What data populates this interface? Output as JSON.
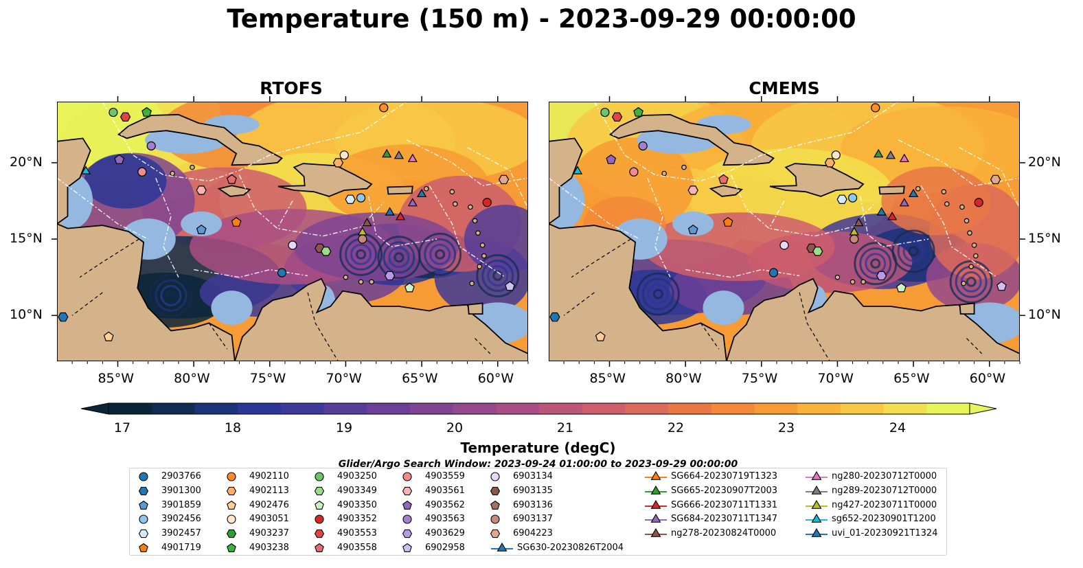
{
  "title": "Temperature (150 m) - 2023-09-29 00:00:00",
  "panels": [
    {
      "title": "RTOFS"
    },
    {
      "title": "CMEMS"
    }
  ],
  "axes": {
    "lon_ticks": [
      "85°W",
      "80°W",
      "75°W",
      "70°W",
      "65°W",
      "60°W"
    ],
    "lat_ticks": [
      "20°N",
      "15°N",
      "10°N"
    ],
    "lon_range": [
      -89,
      -58
    ],
    "lat_range": [
      7,
      24
    ]
  },
  "colorbar": {
    "label": "Temperature (degC)",
    "ticks": [
      "17",
      "18",
      "19",
      "20",
      "21",
      "22",
      "23",
      "24"
    ],
    "colors": [
      "#0b2538",
      "#112b52",
      "#1d3379",
      "#2c3696",
      "#3f3a99",
      "#553d98",
      "#6b4096",
      "#804592",
      "#95498b",
      "#a94e84",
      "#bc557a",
      "#cd5e6c",
      "#dc6a5a",
      "#e87746",
      "#f28838",
      "#f79c34",
      "#f9b23a",
      "#f8c845",
      "#f2df4e",
      "#e6f55a"
    ],
    "extend": "both"
  },
  "map_colors": {
    "land": "#d4b38a",
    "shallow": "#95b8e0",
    "deep_cold": "#0b2538",
    "warm": "#f28838",
    "hot": "#e6f55a",
    "mid": "#8a4790",
    "eez_line": "#ffffff"
  },
  "search_window": "Glider/Argo Search Window: 2023-09-24 01:00:00 to 2023-09-29 00:00:00",
  "legend": {
    "columns": [
      [
        {
          "label": "2903766",
          "marker": "circle",
          "color": "#1f77b4"
        },
        {
          "label": "3901300",
          "marker": "hexagon",
          "color": "#1f77b4"
        },
        {
          "label": "3901859",
          "marker": "pentagon",
          "color": "#5b9bd5"
        },
        {
          "label": "3902456",
          "marker": "circle",
          "color": "#8ec6ee"
        },
        {
          "label": "3902457",
          "marker": "hexagon",
          "color": "#d6ecfa"
        },
        {
          "label": "4901719",
          "marker": "pentagon",
          "color": "#ff7f0e"
        }
      ],
      [
        {
          "label": "4902110",
          "marker": "circle",
          "color": "#ff8c2a"
        },
        {
          "label": "4902113",
          "marker": "hexagon",
          "color": "#ffb066"
        },
        {
          "label": "4902476",
          "marker": "pentagon",
          "color": "#ffcf99"
        },
        {
          "label": "4903051",
          "marker": "circle",
          "color": "#ffe8cc"
        },
        {
          "label": "4903237",
          "marker": "hexagon",
          "color": "#2ca02c"
        },
        {
          "label": "4903238",
          "marker": "pentagon",
          "color": "#3cb33c"
        }
      ],
      [
        {
          "label": "4903250",
          "marker": "circle",
          "color": "#6cc56c"
        },
        {
          "label": "4903349",
          "marker": "hexagon",
          "color": "#98df8a"
        },
        {
          "label": "4903350",
          "marker": "pentagon",
          "color": "#ccf2c2"
        },
        {
          "label": "4903352",
          "marker": "circle",
          "color": "#d62728"
        },
        {
          "label": "4903553",
          "marker": "hexagon",
          "color": "#e04545"
        },
        {
          "label": "4903558",
          "marker": "pentagon",
          "color": "#ea6b6b"
        }
      ],
      [
        {
          "label": "4903559",
          "marker": "circle",
          "color": "#f28c8c"
        },
        {
          "label": "4903561",
          "marker": "hexagon",
          "color": "#f8b3b3"
        },
        {
          "label": "4903562",
          "marker": "pentagon",
          "color": "#9467bd"
        },
        {
          "label": "4903563",
          "marker": "circle",
          "color": "#a47fd0"
        },
        {
          "label": "4903629",
          "marker": "hexagon",
          "color": "#b99ae0"
        },
        {
          "label": "6902958",
          "marker": "pentagon",
          "color": "#d2bdf0"
        }
      ],
      [
        {
          "label": "6903134",
          "marker": "circle",
          "color": "#e8d8f8"
        },
        {
          "label": "6903135",
          "marker": "hexagon",
          "color": "#8c564b"
        },
        {
          "label": "6903136",
          "marker": "pentagon",
          "color": "#a9705f"
        },
        {
          "label": "6903137",
          "marker": "circle",
          "color": "#c58a78"
        },
        {
          "label": "6904223",
          "marker": "hexagon",
          "color": "#e0a890"
        },
        {
          "label": "SG630-20230826T2004",
          "marker": "triangle-line",
          "color": "#1f77b4"
        }
      ],
      [
        {
          "label": "SG664-20230719T1323",
          "marker": "triangle-line",
          "color": "#ff7f0e"
        },
        {
          "label": "SG665-20230907T2003",
          "marker": "triangle-line",
          "color": "#2ca02c"
        },
        {
          "label": "SG666-20230711T1331",
          "marker": "triangle-line",
          "color": "#d62728"
        },
        {
          "label": "SG684-20230711T1347",
          "marker": "triangle-line",
          "color": "#9467bd"
        },
        {
          "label": "ng278-20230824T0000",
          "marker": "triangle-line",
          "color": "#8c564b"
        }
      ],
      [
        {
          "label": "ng280-20230712T0000",
          "marker": "triangle-line",
          "color": "#e377c2"
        },
        {
          "label": "ng289-20230712T0000",
          "marker": "triangle-line",
          "color": "#7f7f7f"
        },
        {
          "label": "ng427-20230711T0000",
          "marker": "triangle-line",
          "color": "#bcbd22"
        },
        {
          "label": "sg652-20230901T1200",
          "marker": "triangle-line",
          "color": "#17becf"
        },
        {
          "label": "uvi_01-20230921T1324",
          "marker": "triangle-line",
          "color": "#1f77b4"
        }
      ]
    ]
  },
  "observations": [
    {
      "id": "4903250",
      "lon": -85.3,
      "lat": 23.3
    },
    {
      "id": "4903553",
      "lon": -84.5,
      "lat": 23.0
    },
    {
      "id": "4903238",
      "lon": -83.1,
      "lat": 23.3
    },
    {
      "id": "4902110",
      "lon": -67.5,
      "lat": 23.6
    },
    {
      "id": "4903563",
      "lon": -82.8,
      "lat": 21.1
    },
    {
      "id": "4903562",
      "lon": -84.9,
      "lat": 20.2
    },
    {
      "id": "4903559",
      "lon": -83.4,
      "lat": 19.4
    },
    {
      "id": "sg652-20230901T1200",
      "lon": -87.1,
      "lat": 19.5
    },
    {
      "id": "4903051",
      "lon": -70.1,
      "lat": 20.5
    },
    {
      "id": "4902113",
      "lon": -70.5,
      "lat": 20.0
    },
    {
      "id": "SG665-20230907T2003",
      "lon": -67.3,
      "lat": 20.6
    },
    {
      "id": "ng289-20230712T0000",
      "lon": -66.5,
      "lat": 20.5
    },
    {
      "id": "ng280-20230712T0000",
      "lon": -65.6,
      "lat": 20.3
    },
    {
      "id": "6904223",
      "lon": -59.6,
      "lat": 18.9
    },
    {
      "id": "4903561",
      "lon": -79.5,
      "lat": 18.2
    },
    {
      "id": "4903558",
      "lon": -77.5,
      "lat": 18.9
    },
    {
      "id": "3902457",
      "lon": -69.7,
      "lat": 17.6
    },
    {
      "id": "3902456",
      "lon": -69.0,
      "lat": 17.7
    },
    {
      "id": "uvi_01-20230921T1324",
      "lon": -65.0,
      "lat": 18.0
    },
    {
      "id": "SG684-20230711T1347",
      "lon": -65.6,
      "lat": 17.4
    },
    {
      "id": "4903352",
      "lon": -60.7,
      "lat": 17.4
    },
    {
      "id": "SG630-20230826T2004",
      "lon": -67.1,
      "lat": 16.8
    },
    {
      "id": "SG666-20230711T1331",
      "lon": -66.4,
      "lat": 16.5
    },
    {
      "id": "4901719",
      "lon": -77.2,
      "lat": 16.1
    },
    {
      "id": "3901859",
      "lon": -79.5,
      "lat": 15.6
    },
    {
      "id": "ng427-20230711T0000",
      "lon": -68.9,
      "lat": 15.5
    },
    {
      "id": "ng278-20230824T0000",
      "lon": -68.6,
      "lat": 16.1
    },
    {
      "id": "6903137",
      "lon": -68.9,
      "lat": 15.0
    },
    {
      "id": "6903134",
      "lon": -73.5,
      "lat": 14.6
    },
    {
      "id": "6903135",
      "lon": -71.7,
      "lat": 14.4
    },
    {
      "id": "4903349",
      "lon": -71.3,
      "lat": 14.2
    },
    {
      "id": "2903766",
      "lon": -74.2,
      "lat": 12.8
    },
    {
      "id": "4903629",
      "lon": -67.1,
      "lat": 12.6
    },
    {
      "id": "4903350",
      "lon": -65.8,
      "lat": 11.8
    },
    {
      "id": "6902958",
      "lon": -59.2,
      "lat": 11.9
    },
    {
      "id": "3901300",
      "lon": -88.6,
      "lat": 9.9
    },
    {
      "id": "4902476",
      "lon": -85.6,
      "lat": 8.6
    }
  ]
}
